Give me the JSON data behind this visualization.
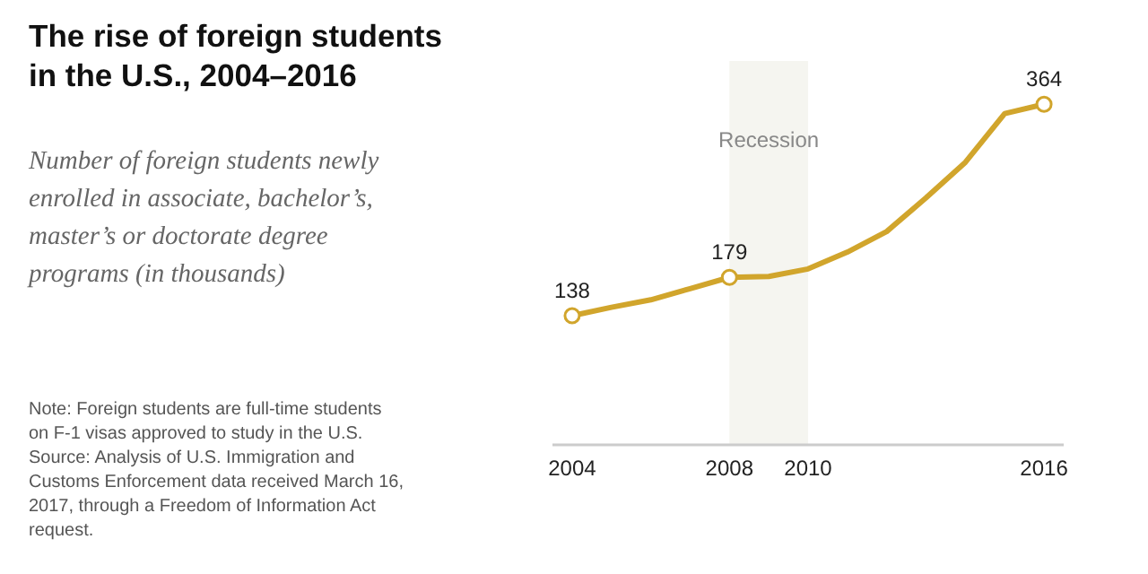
{
  "chart_data": {
    "type": "line",
    "title": "The rise of foreign students in the U.S., 2004–2016",
    "subtitle": "Number of foreign students newly enrolled in associate, bachelor’s, master’s or doctorate degree programs (in thousands)",
    "x": [
      2004,
      2005,
      2006,
      2007,
      2008,
      2009,
      2010,
      2011,
      2012,
      2013,
      2014,
      2015,
      2016
    ],
    "series": [
      {
        "color": "#d1a52c",
        "values": [
          138,
          147,
          155,
          167,
          179,
          180,
          188,
          206,
          228,
          264,
          302,
          354,
          364
        ],
        "value_labels": [
          "138",
          null,
          null,
          null,
          "179",
          null,
          null,
          null,
          null,
          null,
          null,
          null,
          "364"
        ]
      }
    ],
    "xlim": [
      2003.5,
      2016.5
    ],
    "xticks": [
      2004,
      2008,
      2010,
      2016
    ],
    "tick_labels": "x",
    "line_style": "solid",
    "bands": [
      {
        "axis": "x",
        "from": 2008,
        "to": 2010,
        "label": "Recession",
        "color": "#f5f5f0"
      }
    ],
    "annotations": [
      "Note: Foreign students are full-time students on F-1 visas approved to study in the U.S.",
      "Source: Analysis of U.S. Immigration and Customs Enforcement data received March 16, 2017, through a Freedom of Information Act request."
    ]
  }
}
